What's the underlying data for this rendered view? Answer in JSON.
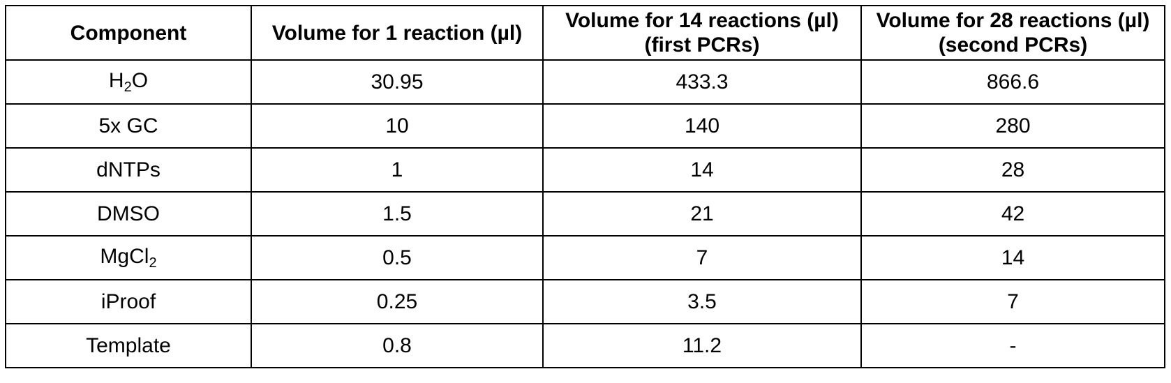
{
  "table": {
    "headers": [
      "Component",
      "Volume for 1 reaction (µl)",
      "Volume for 14 reactions (µl) (first PCRs)",
      "Volume for 28 reactions (µl) (second PCRs)"
    ],
    "rows": [
      {
        "component": {
          "base": "H",
          "sub": "2",
          "tail": "O"
        },
        "values": [
          "30.95",
          "433.3",
          "866.6"
        ]
      },
      {
        "component": {
          "base": "5x GC",
          "sub": "",
          "tail": ""
        },
        "values": [
          "10",
          "140",
          "280"
        ]
      },
      {
        "component": {
          "base": "dNTPs",
          "sub": "",
          "tail": ""
        },
        "values": [
          "1",
          "14",
          "28"
        ]
      },
      {
        "component": {
          "base": "DMSO",
          "sub": "",
          "tail": ""
        },
        "values": [
          "1.5",
          "21",
          "42"
        ]
      },
      {
        "component": {
          "base": "MgCl",
          "sub": "2",
          "tail": ""
        },
        "values": [
          "0.5",
          "7",
          "14"
        ]
      },
      {
        "component": {
          "base": "iProof",
          "sub": "",
          "tail": ""
        },
        "values": [
          "0.25",
          "3.5",
          "7"
        ]
      },
      {
        "component": {
          "base": "Template",
          "sub": "",
          "tail": ""
        },
        "values": [
          "0.8",
          "11.2",
          "-"
        ]
      }
    ]
  }
}
